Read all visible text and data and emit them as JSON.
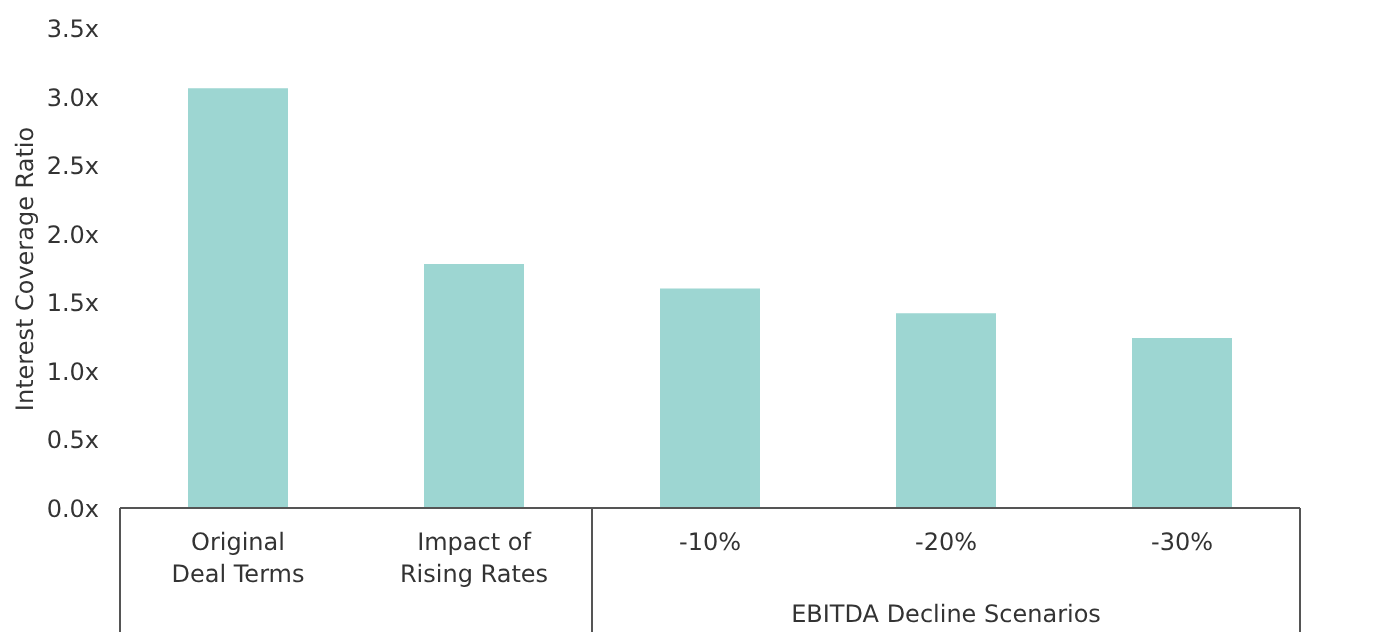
{
  "chart_data": {
    "type": "bar",
    "ylabel": "Interest Coverage Ratio",
    "categories": [
      "Original\nDeal Terms",
      "Impact of\nRising Rates",
      "-10%",
      "-20%",
      "-30%"
    ],
    "values": [
      3.06,
      1.78,
      1.6,
      1.42,
      1.24
    ],
    "color": "#9dd6d2",
    "ylim": [
      0,
      3.5
    ],
    "yticks": [
      {
        "value": 0,
        "label": "0.0x"
      },
      {
        "value": 0.5,
        "label": "0.5x"
      },
      {
        "value": 1,
        "label": "1.0x"
      },
      {
        "value": 1.5,
        "label": "1.5x"
      },
      {
        "value": 2,
        "label": "2.0x"
      },
      {
        "value": 2.5,
        "label": "2.5x"
      },
      {
        "value": 3,
        "label": "3.0x"
      },
      {
        "value": 3.5,
        "label": "3.5x"
      }
    ],
    "annotations": [
      "EBITDA Decline Scenarios"
    ],
    "grid": false
  }
}
